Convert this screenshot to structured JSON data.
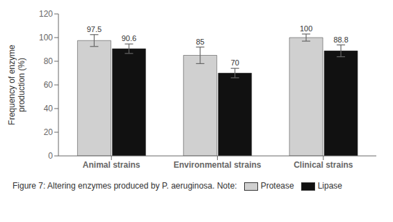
{
  "chart_data": {
    "type": "bar",
    "title": "Figure 7: Altering enzymes produced by P. aeruginosa. Note:",
    "categories": [
      "Animal strains",
      "Environmental strains",
      "Clinical strains"
    ],
    "series": [
      {
        "name": "Protease",
        "color": "#d0d0d0",
        "values": [
          97.5,
          85,
          100
        ],
        "errors": [
          5,
          7,
          3
        ]
      },
      {
        "name": "Lipase",
        "color": "#111111",
        "values": [
          90.6,
          70,
          88.8
        ],
        "errors": [
          4,
          4,
          5
        ]
      }
    ],
    "ylabel": "Frequency of enzyme\nproduction (%)",
    "ylim": [
      0,
      120
    ],
    "yticks": [
      0,
      20,
      40,
      60,
      80,
      100,
      120
    ],
    "data_labels": true,
    "grid": false,
    "legend": "bottom"
  }
}
